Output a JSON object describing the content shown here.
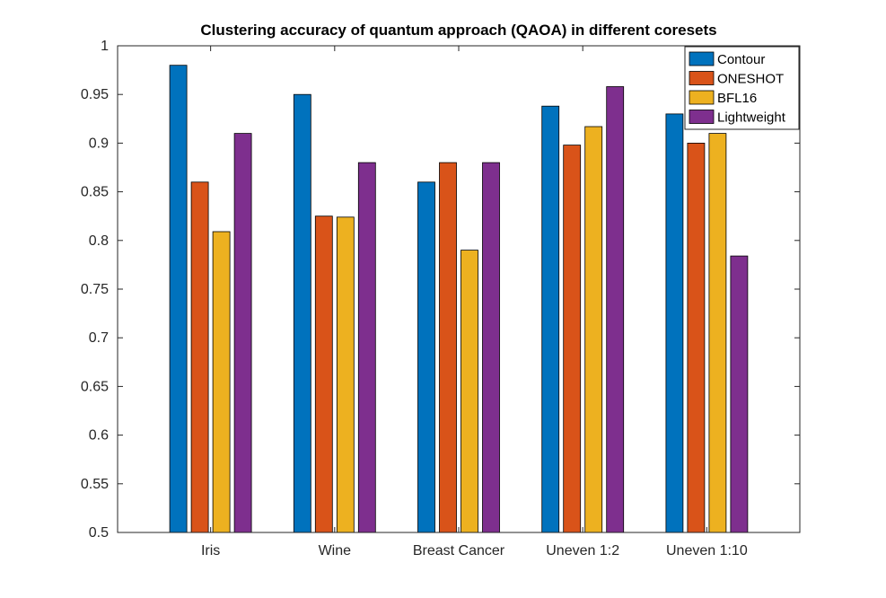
{
  "chart_data": {
    "type": "bar",
    "title": "Clustering accuracy of quantum approach (QAOA) in different coresets",
    "xlabel": "",
    "ylabel": "",
    "categories": [
      "Iris",
      "Wine",
      "Breast Cancer",
      "Uneven 1:2",
      "Uneven 1:10"
    ],
    "ylim": [
      0.5,
      1
    ],
    "yticks": [
      "0.5",
      "0.55",
      "0.6",
      "0.65",
      "0.7",
      "0.75",
      "0.8",
      "0.85",
      "0.9",
      "0.95",
      "1"
    ],
    "grid": false,
    "legend_position": "top-right",
    "series": [
      {
        "name": "Contour",
        "color": "#0072BD",
        "values": [
          0.98,
          0.95,
          0.86,
          0.938,
          0.93
        ]
      },
      {
        "name": "ONESHOT",
        "color": "#D95319",
        "values": [
          0.86,
          0.825,
          0.88,
          0.898,
          0.9
        ]
      },
      {
        "name": "BFL16",
        "color": "#EDB120",
        "values": [
          0.809,
          0.824,
          0.79,
          0.917,
          0.91
        ]
      },
      {
        "name": "Lightweight",
        "color": "#7E2F8E",
        "values": [
          0.91,
          0.88,
          0.88,
          0.958,
          0.784
        ]
      }
    ]
  }
}
